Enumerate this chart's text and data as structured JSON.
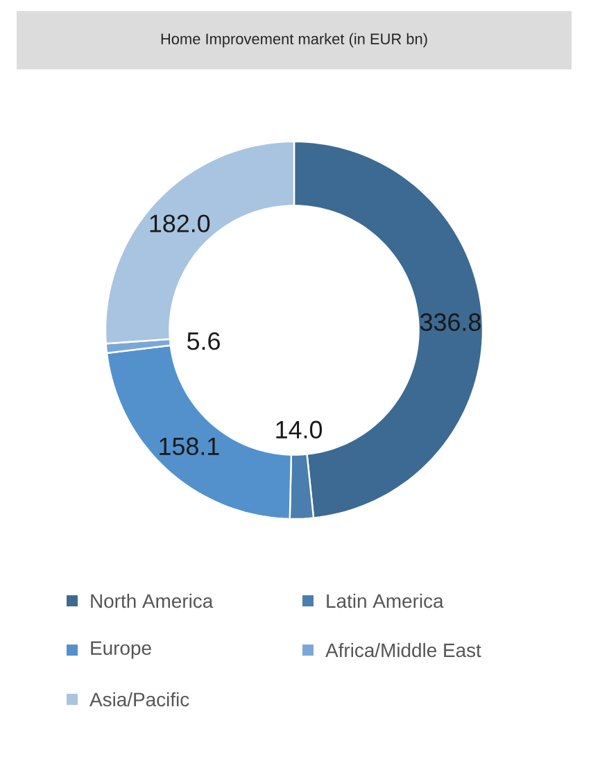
{
  "chart_data": {
    "type": "donut",
    "title": "Home Improvement market (in EUR bn)",
    "categories": [
      "North America",
      "Latin America",
      "Europe",
      "Africa/Middle East",
      "Asia/Pacific"
    ],
    "values": [
      336.8,
      14.0,
      158.1,
      5.6,
      182.0
    ],
    "colors": [
      "#3d6a92",
      "#4a7eae",
      "#5391cd",
      "#7aa7d7",
      "#a9c4e1"
    ],
    "value_labels": [
      "336.8",
      "14.0",
      "158.1",
      "5.6",
      "182.0"
    ],
    "legend": "bottom"
  }
}
